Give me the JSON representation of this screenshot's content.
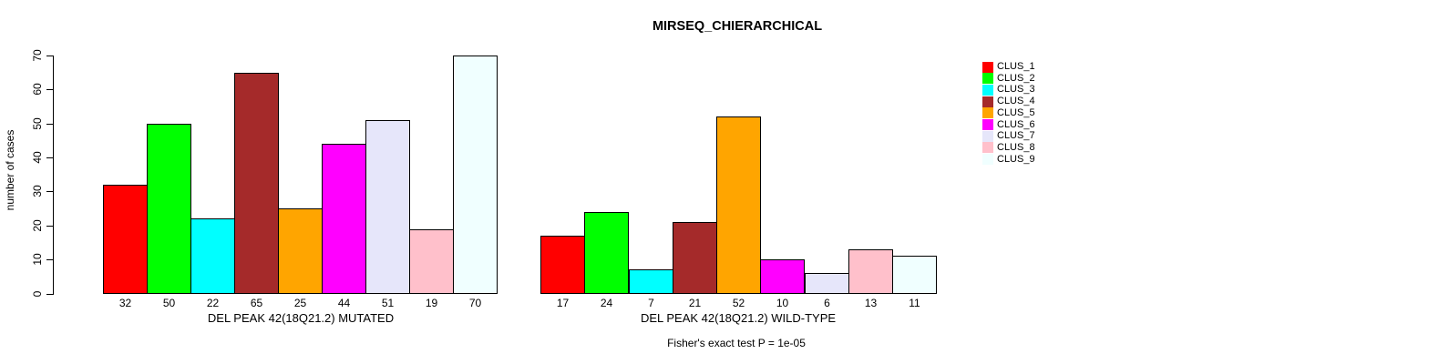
{
  "title": "MIRSEQ_CHIERARCHICAL",
  "footnote": "Fisher's exact test P = 1e-05",
  "colors": {
    "background": "#ffffff",
    "axis": "#000000",
    "bar_border": "#000000"
  },
  "legend": {
    "position": "right",
    "entries": [
      {
        "label": "CLUS_1",
        "color": "#FF0000"
      },
      {
        "label": "CLUS_2",
        "color": "#00FF00"
      },
      {
        "label": "CLUS_3",
        "color": "#00FFFF"
      },
      {
        "label": "CLUS_4",
        "color": "#A52A2A"
      },
      {
        "label": "CLUS_5",
        "color": "#FFA500"
      },
      {
        "label": "CLUS_6",
        "color": "#FF00FF"
      },
      {
        "label": "CLUS_7",
        "color": "#E6E6FA"
      },
      {
        "label": "CLUS_8",
        "color": "#FFC0CB"
      },
      {
        "label": "CLUS_9",
        "color": "#F0FFFF"
      }
    ]
  },
  "chart_data": [
    {
      "type": "bar",
      "panel": "left",
      "xlabel": "DEL PEAK 42(18Q21.2) MUTATED",
      "ylabel": "number of cases",
      "categories": [
        "CLUS_1",
        "CLUS_2",
        "CLUS_3",
        "CLUS_4",
        "CLUS_5",
        "CLUS_6",
        "CLUS_7",
        "CLUS_8",
        "CLUS_9"
      ],
      "values": [
        32,
        50,
        22,
        65,
        25,
        44,
        51,
        19,
        70
      ],
      "bar_labels": [
        "32",
        "50",
        "22",
        "65",
        "25",
        "44",
        "51",
        "19",
        "70"
      ],
      "colors": [
        "#FF0000",
        "#00FF00",
        "#00FFFF",
        "#A52A2A",
        "#FFA500",
        "#FF00FF",
        "#E6E6FA",
        "#FFC0CB",
        "#F0FFFF"
      ],
      "ylim": [
        0,
        70
      ],
      "yticks": [
        0,
        10,
        20,
        30,
        40,
        50,
        60,
        70
      ],
      "y_axis_shown": true,
      "grid": false
    },
    {
      "type": "bar",
      "panel": "right",
      "xlabel": "DEL PEAK 42(18Q21.2) WILD-TYPE",
      "ylabel": "number of cases",
      "categories": [
        "CLUS_1",
        "CLUS_2",
        "CLUS_3",
        "CLUS_4",
        "CLUS_5",
        "CLUS_6",
        "CLUS_7",
        "CLUS_8",
        "CLUS_9"
      ],
      "values": [
        17,
        24,
        7,
        21,
        52,
        10,
        6,
        13,
        11
      ],
      "bar_labels": [
        "17",
        "24",
        "7",
        "21",
        "52",
        "10",
        "6",
        "13",
        "11"
      ],
      "colors": [
        "#FF0000",
        "#00FF00",
        "#00FFFF",
        "#A52A2A",
        "#FFA500",
        "#FF00FF",
        "#E6E6FA",
        "#FFC0CB",
        "#F0FFFF"
      ],
      "ylim": [
        0,
        70
      ],
      "yticks": [
        0,
        10,
        20,
        30,
        40,
        50,
        60,
        70
      ],
      "y_axis_shown": false,
      "grid": false
    }
  ]
}
